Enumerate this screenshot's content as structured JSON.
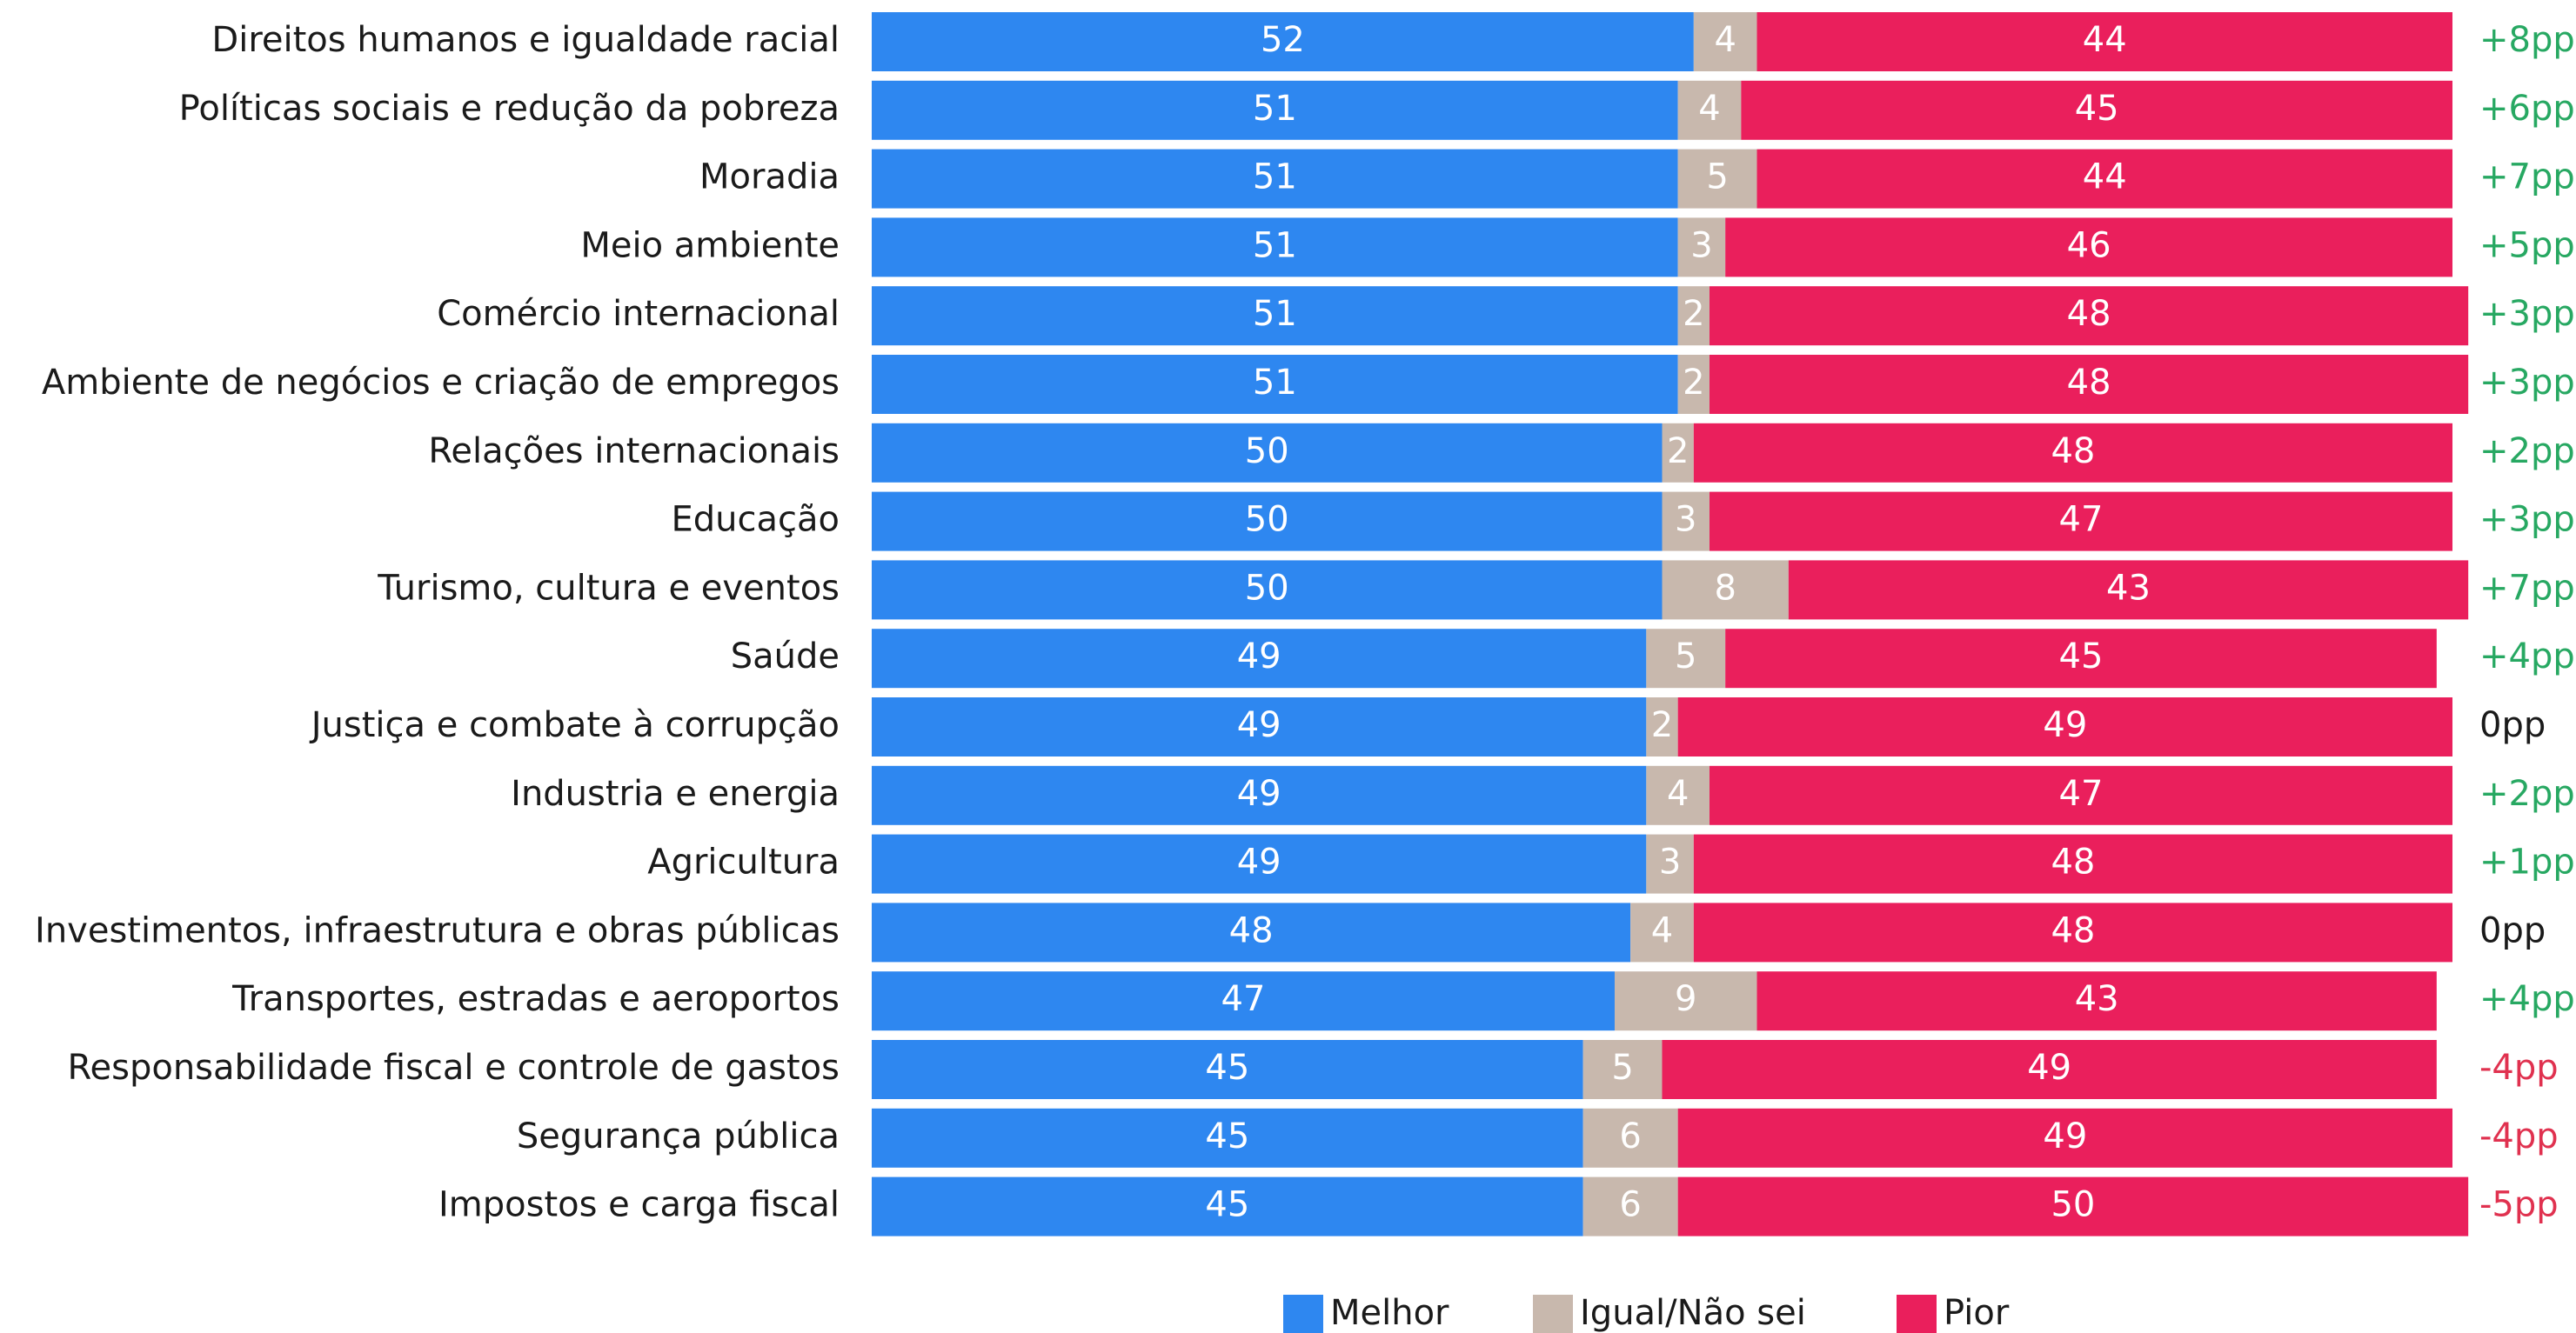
{
  "chart_data": {
    "type": "bar",
    "orientation": "horizontal",
    "stacked": true,
    "normalized_percent": true,
    "title": "",
    "xlabel": "",
    "ylabel": "",
    "xlim": [
      0,
      100
    ],
    "grid": false,
    "legend_position": "bottom-center",
    "categories": [
      "Direitos humanos e igualdade racial",
      "Políticas sociais e redução da pobreza",
      "Moradia",
      "Meio ambiente",
      "Comércio internacional",
      "Ambiente de negócios e criação de empregos",
      "Relações internacionais",
      "Educação",
      "Turismo, cultura e eventos",
      "Saúde",
      "Justiça e combate à corrupção",
      "Industria e energia",
      "Agricultura",
      "Investimentos, infraestrutura e obras públicas",
      "Transportes, estradas e aeroportos",
      "Responsabilidade fiscal e controle de gastos",
      "Segurança pública",
      "Impostos e carga fiscal"
    ],
    "series": [
      {
        "name": "Melhor",
        "color": "#2e87f0",
        "values": [
          52,
          51,
          51,
          51,
          51,
          51,
          50,
          50,
          50,
          49,
          49,
          49,
          49,
          48,
          47,
          45,
          45,
          45
        ]
      },
      {
        "name": "Igual/Não sei",
        "color": "#c8b8ad",
        "values": [
          4,
          4,
          5,
          3,
          2,
          2,
          2,
          3,
          8,
          5,
          2,
          4,
          3,
          4,
          9,
          5,
          6,
          6
        ]
      },
      {
        "name": "Pior",
        "color": "#ea1f5c",
        "values": [
          44,
          45,
          44,
          46,
          48,
          48,
          48,
          47,
          43,
          45,
          49,
          47,
          48,
          48,
          43,
          49,
          49,
          50
        ]
      }
    ],
    "differences": [
      "+8pp",
      "+6pp",
      "+7pp",
      "+5pp",
      "+3pp",
      "+3pp",
      "+2pp",
      "+3pp",
      "+7pp",
      "+4pp",
      "0pp",
      "+2pp",
      "+1pp",
      "0pp",
      "+4pp",
      "-4pp",
      "-4pp",
      "-5pp"
    ],
    "difference_colors": {
      "positive": "#27a862",
      "zero": "#1a1a1a",
      "negative": "#e0314f"
    }
  }
}
